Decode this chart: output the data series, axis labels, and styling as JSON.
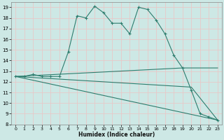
{
  "xlabel": "Humidex (Indice chaleur)",
  "xlim": [
    -0.5,
    23.5
  ],
  "ylim": [
    8,
    19.5
  ],
  "yticks": [
    8,
    9,
    10,
    11,
    12,
    13,
    14,
    15,
    16,
    17,
    18,
    19
  ],
  "xticks": [
    0,
    1,
    2,
    3,
    4,
    5,
    6,
    7,
    8,
    9,
    10,
    11,
    12,
    13,
    14,
    15,
    16,
    17,
    18,
    19,
    20,
    21,
    22,
    23
  ],
  "bg_color": "#cde8e5",
  "grid_color": "#e8c8c8",
  "line_color": "#2e7d6e",
  "series_main": {
    "x": [
      0,
      1,
      2,
      3,
      4,
      5,
      6,
      7,
      8,
      9,
      10,
      11,
      12,
      13,
      14,
      15,
      16,
      17,
      18,
      19,
      20,
      21,
      22,
      23
    ],
    "y": [
      12.5,
      12.5,
      12.7,
      12.5,
      12.5,
      12.5,
      14.8,
      18.2,
      18.0,
      19.1,
      18.5,
      17.5,
      17.5,
      16.5,
      19.0,
      18.8,
      17.8,
      16.5,
      14.5,
      13.3,
      11.2,
      9.0,
      8.7,
      8.4
    ]
  },
  "series_upper": {
    "x": [
      0,
      19,
      23
    ],
    "y": [
      12.5,
      13.3,
      13.3
    ]
  },
  "series_mid": {
    "x": [
      0,
      20,
      23
    ],
    "y": [
      12.5,
      11.5,
      8.4
    ]
  },
  "series_lower": {
    "x": [
      0,
      23
    ],
    "y": [
      12.5,
      8.4
    ]
  }
}
